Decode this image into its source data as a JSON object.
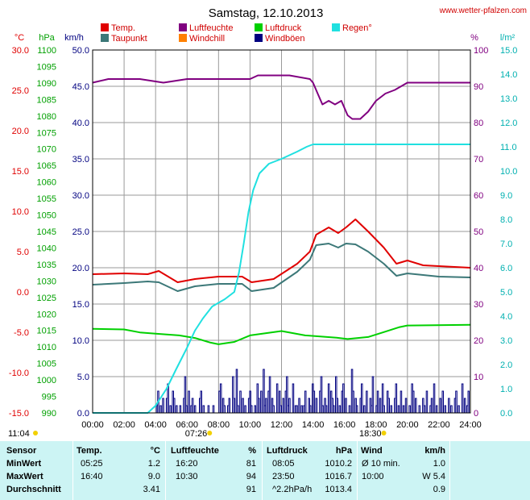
{
  "header": {
    "title": "Samstag, 12.10.2013",
    "site": "www.wetter-pfalzen.com"
  },
  "legend": [
    {
      "label": "Temp.",
      "color": "#e00000"
    },
    {
      "label": "Taupunkt",
      "color": "#3c7878"
    },
    {
      "label": "Luftfeuchte",
      "color": "#800080"
    },
    {
      "label": "Windchill",
      "color": "#ff8000"
    },
    {
      "label": "Luftdruck",
      "color": "#00d000"
    },
    {
      "label": "Windböen",
      "color": "#000080"
    },
    {
      "label": "Regen°",
      "color": "#20e0e0"
    }
  ],
  "axes": {
    "units_left": [
      "°C",
      "hPa",
      "km/h"
    ],
    "units_right": [
      "%",
      "l/m²"
    ],
    "temp_ticks": [
      "30.0",
      "25.0",
      "20.0",
      "15.0",
      "10.0",
      "5.0",
      "0.0",
      "-5.0",
      "-10.0",
      "-15.0"
    ],
    "pressure_ticks": [
      "1100",
      "1095",
      "1090",
      "1085",
      "1080",
      "1075",
      "1070",
      "1065",
      "1060",
      "1055",
      "1050",
      "1045",
      "1040",
      "1035",
      "1030",
      "1025",
      "1020",
      "1015",
      "1010",
      "1005",
      "1000",
      "995",
      "990"
    ],
    "wind_ticks": [
      "50.0",
      "45.0",
      "40.0",
      "35.0",
      "30.0",
      "25.0",
      "20.0",
      "15.0",
      "10.0",
      "5.0",
      "0.0"
    ],
    "humidity_ticks": [
      "100",
      "90",
      "80",
      "70",
      "60",
      "50",
      "40",
      "30",
      "20",
      "10",
      "0"
    ],
    "rain_ticks": [
      "15.0",
      "14.0",
      "13.0",
      "12.0",
      "11.0",
      "10.0",
      "9.0",
      "8.0",
      "7.0",
      "6.0",
      "5.0",
      "4.0",
      "3.0",
      "2.0",
      "1.0",
      "0.0"
    ],
    "time_ticks": [
      "00:00",
      "02:00",
      "04:00",
      "06:00",
      "08:00",
      "10:00",
      "12:00",
      "14:00",
      "16:00",
      "18:00",
      "20:00",
      "22:00",
      "24:00"
    ],
    "sun": {
      "daylength": "11:04",
      "sunrise": "07:26",
      "sunset": "18:30"
    }
  },
  "chart_data": {
    "type": "line",
    "title": "Samstag, 12.10.2013",
    "x_unit": "hours",
    "xlim": [
      0,
      24
    ],
    "ylim_temp": [
      -15,
      30
    ],
    "ylim_pressure": [
      990,
      1100
    ],
    "ylim_wind": [
      0,
      50
    ],
    "ylim_humidity": [
      0,
      100
    ],
    "ylim_rain": [
      0,
      15
    ],
    "grid": true,
    "series": [
      {
        "name": "Temp.",
        "axis": "temp",
        "color": "#e00000",
        "points": [
          [
            0,
            2.2
          ],
          [
            2,
            2.3
          ],
          [
            3.5,
            2.2
          ],
          [
            4.2,
            2.6
          ],
          [
            5.4,
            1.2
          ],
          [
            6.5,
            1.6
          ],
          [
            8,
            1.9
          ],
          [
            9.5,
            1.9
          ],
          [
            10.1,
            1.2
          ],
          [
            11.5,
            1.6
          ],
          [
            13,
            3.5
          ],
          [
            13.8,
            5.0
          ],
          [
            14.2,
            7.1
          ],
          [
            15,
            8.0
          ],
          [
            15.6,
            7.3
          ],
          [
            16.1,
            8.0
          ],
          [
            16.7,
            9.0
          ],
          [
            17.5,
            7.5
          ],
          [
            18.5,
            5.5
          ],
          [
            19.3,
            3.5
          ],
          [
            20,
            3.9
          ],
          [
            21,
            3.3
          ],
          [
            22,
            3.2
          ],
          [
            24,
            3.0
          ]
        ]
      },
      {
        "name": "Taupunkt",
        "axis": "temp",
        "color": "#3c7878",
        "points": [
          [
            0,
            0.9
          ],
          [
            2,
            1.1
          ],
          [
            3.5,
            1.3
          ],
          [
            4.2,
            1.2
          ],
          [
            5.4,
            0.1
          ],
          [
            6.5,
            0.7
          ],
          [
            8,
            1.0
          ],
          [
            9.5,
            1.0
          ],
          [
            10.1,
            0.1
          ],
          [
            11.5,
            0.5
          ],
          [
            13,
            2.5
          ],
          [
            13.8,
            4.0
          ],
          [
            14.2,
            5.8
          ],
          [
            15,
            6.0
          ],
          [
            15.6,
            5.5
          ],
          [
            16.1,
            6.0
          ],
          [
            16.7,
            5.9
          ],
          [
            17.5,
            5.0
          ],
          [
            18.5,
            3.5
          ],
          [
            19.3,
            2.0
          ],
          [
            20,
            2.3
          ],
          [
            21,
            2.1
          ],
          [
            22,
            1.9
          ],
          [
            24,
            1.8
          ]
        ]
      },
      {
        "name": "Luftfeuchte",
        "axis": "humidity",
        "color": "#800080",
        "points": [
          [
            0,
            91
          ],
          [
            1,
            92
          ],
          [
            2,
            92
          ],
          [
            3,
            92
          ],
          [
            4.5,
            91
          ],
          [
            6,
            92
          ],
          [
            8,
            92
          ],
          [
            10,
            92
          ],
          [
            10.5,
            93
          ],
          [
            12.5,
            93
          ],
          [
            13.8,
            92
          ],
          [
            14,
            91
          ],
          [
            14.3,
            88
          ],
          [
            14.6,
            85
          ],
          [
            15,
            86
          ],
          [
            15.4,
            85
          ],
          [
            15.8,
            86
          ],
          [
            16.2,
            82
          ],
          [
            16.5,
            81
          ],
          [
            17,
            81
          ],
          [
            17.5,
            83
          ],
          [
            18,
            86
          ],
          [
            18.6,
            88
          ],
          [
            19.2,
            89
          ],
          [
            20,
            91
          ],
          [
            21,
            91
          ],
          [
            24,
            91
          ]
        ]
      },
      {
        "name": "Luftdruck",
        "axis": "pressure",
        "color": "#00d000",
        "points": [
          [
            0,
            1015.5
          ],
          [
            2,
            1015.3
          ],
          [
            3,
            1014.4
          ],
          [
            4,
            1014.0
          ],
          [
            5.5,
            1013.5
          ],
          [
            6.5,
            1012.7
          ],
          [
            7.5,
            1011.3
          ],
          [
            8,
            1010.8
          ],
          [
            9,
            1011.5
          ],
          [
            10,
            1013.5
          ],
          [
            12,
            1014.8
          ],
          [
            13.5,
            1013.5
          ],
          [
            15.5,
            1012.8
          ],
          [
            16.2,
            1012.4
          ],
          [
            17.5,
            1013.0
          ],
          [
            18.5,
            1014.5
          ],
          [
            19.5,
            1016.0
          ],
          [
            20,
            1016.5
          ],
          [
            24,
            1016.7
          ]
        ]
      },
      {
        "name": "Regen°",
        "axis": "rain",
        "color": "#20e0e0",
        "points": [
          [
            0,
            0
          ],
          [
            3.5,
            0
          ],
          [
            4,
            0.3
          ],
          [
            4.7,
            1.0
          ],
          [
            5.3,
            1.8
          ],
          [
            6,
            2.7
          ],
          [
            6.5,
            3.4
          ],
          [
            7,
            3.9
          ],
          [
            7.6,
            4.4
          ],
          [
            8.4,
            4.7
          ],
          [
            9,
            5.0
          ],
          [
            9.3,
            5.8
          ],
          [
            9.6,
            7.0
          ],
          [
            9.9,
            8.3
          ],
          [
            10.2,
            9.2
          ],
          [
            10.6,
            9.9
          ],
          [
            11.2,
            10.3
          ],
          [
            12,
            10.5
          ],
          [
            13,
            10.8
          ],
          [
            13.6,
            11.0
          ],
          [
            14,
            11.1
          ],
          [
            24,
            11.1
          ]
        ]
      }
    ],
    "wind_gust_kmh": [
      0,
      0,
      0,
      0,
      0,
      0,
      0,
      0,
      0,
      0,
      0,
      0,
      0,
      0,
      0,
      0,
      0,
      0,
      0,
      0,
      0,
      0,
      0,
      0,
      0,
      0,
      0,
      0,
      0,
      0,
      0,
      0,
      0,
      0,
      0,
      0,
      0,
      0,
      0,
      0,
      0,
      0,
      0,
      0,
      0,
      0,
      0,
      0,
      0,
      0,
      0,
      0,
      1,
      3,
      0,
      1,
      0,
      2,
      0,
      0,
      2,
      4,
      0,
      1,
      0,
      3,
      2,
      0,
      1,
      0,
      0,
      1,
      0,
      0,
      2,
      5,
      1,
      0,
      3,
      0,
      1,
      2,
      0,
      1,
      0,
      0,
      0,
      2,
      3,
      0,
      1,
      0,
      0,
      0,
      1,
      0,
      0,
      0,
      1,
      0,
      0,
      0,
      0,
      3,
      4,
      0,
      2,
      1,
      0,
      0,
      1,
      2,
      0,
      0,
      5,
      2,
      0,
      6,
      1,
      0,
      3,
      0,
      2,
      0,
      1,
      0,
      0,
      2,
      3,
      1,
      0,
      0,
      1,
      0,
      4,
      2,
      0,
      3,
      0,
      6,
      1,
      2,
      0,
      3,
      5,
      0,
      2,
      1,
      0,
      0,
      4,
      0,
      3,
      1,
      0,
      2,
      0,
      3,
      5,
      1,
      2,
      0,
      0,
      4,
      0,
      1,
      1,
      0,
      2,
      0,
      1,
      0,
      1,
      3,
      0,
      0,
      2,
      1,
      0,
      4,
      3,
      0,
      2,
      0,
      0,
      3,
      5,
      1,
      0,
      2,
      1,
      0,
      4,
      0,
      3,
      2,
      1,
      0,
      5,
      2,
      0,
      1,
      0,
      3,
      4,
      0,
      2,
      0,
      0,
      1,
      0,
      6,
      3,
      0,
      2,
      1,
      0,
      0,
      2,
      4,
      0,
      1,
      0,
      3,
      0,
      0,
      2,
      1,
      5,
      0,
      0,
      1,
      3,
      0,
      2,
      0,
      4,
      1,
      0,
      0,
      3,
      2,
      0,
      1,
      0,
      0,
      2,
      4,
      0,
      1,
      0,
      3,
      0,
      1,
      0,
      2,
      0,
      0,
      1,
      0,
      4,
      3,
      0,
      2,
      0,
      0,
      1,
      0,
      0,
      2,
      1,
      0,
      3,
      0,
      0,
      1,
      2,
      0,
      4,
      0,
      1,
      0,
      0,
      2,
      0,
      3,
      0,
      1,
      0,
      0,
      2,
      0,
      1,
      0,
      0,
      2,
      3,
      0,
      1,
      0,
      0,
      4,
      0,
      2,
      0,
      1,
      3,
      0
    ]
  },
  "stats": {
    "headers": {
      "sensor": "Sensor",
      "temp": "Temp.",
      "temp_unit": "°C",
      "hum": "Luftfeuchte",
      "hum_unit": "%",
      "press": "Luftdruck",
      "press_unit": "hPa",
      "wind": "Wind",
      "wind_unit": "km/h"
    },
    "rows": [
      {
        "label": "MinWert",
        "temp_time": "05:25",
        "temp": "1.2",
        "hum_time": "16:20",
        "hum": "81",
        "press_time": "08:05",
        "press": "1010.2",
        "wind_time": "Ø 10 min.",
        "wind": "1.0"
      },
      {
        "label": "MaxWert",
        "temp_time": "16:40",
        "temp": "9.0",
        "hum_time": "10:30",
        "hum": "94",
        "press_time": "23:50",
        "press": "1016.7",
        "wind_time": "10:00",
        "wind": "W 5.4"
      },
      {
        "label": "Durchschnitt",
        "temp_time": "",
        "temp": "3.41",
        "hum_time": "",
        "hum": "91",
        "press_time": "^2.2hPa/h",
        "press": "1013.4",
        "wind_time": "",
        "wind": "0.9"
      }
    ]
  }
}
